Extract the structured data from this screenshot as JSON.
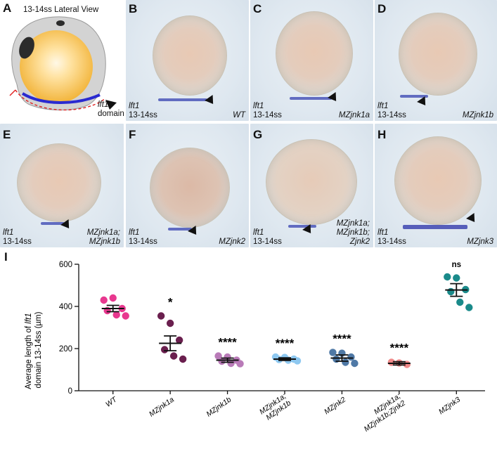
{
  "panels": {
    "A": {
      "letter": "A",
      "view_title": "13-14ss Lateral View",
      "gene": "lft1",
      "domain_label": "domain"
    },
    "B": {
      "letter": "B",
      "gene": "lft1",
      "stage": "13-14ss",
      "genotype": "WT"
    },
    "C": {
      "letter": "C",
      "gene": "lft1",
      "stage": "13-14ss",
      "genotype": "MZjnk1a"
    },
    "D": {
      "letter": "D",
      "gene": "lft1",
      "stage": "13-14ss",
      "genotype": "MZjnk1b"
    },
    "E": {
      "letter": "E",
      "gene": "lft1",
      "stage": "13-14ss",
      "genotype_l1": "MZjnk1a;",
      "genotype_l2": "MZjnk1b"
    },
    "F": {
      "letter": "F",
      "gene": "lft1",
      "stage": "13-14ss",
      "genotype": "MZjnk2"
    },
    "G": {
      "letter": "G",
      "gene": "lft1",
      "stage": "13-14ss",
      "genotype_l1": "MZjnk1a;",
      "genotype_l2": "MZjnk1b;",
      "genotype_l3": "Zjnk2"
    },
    "H": {
      "letter": "H",
      "gene": "lft1",
      "stage": "13-14ss",
      "genotype": "MZjnk3"
    },
    "I": {
      "letter": "I"
    }
  },
  "chart_data": {
    "type": "scatter",
    "ylabel_line1_a": "Average length of ",
    "ylabel_line1_gene": "lft1",
    "ylabel_line2": "domain 13-14ss (µm)",
    "ylim": [
      0,
      600
    ],
    "yticks": [
      0,
      200,
      400,
      600
    ],
    "ytick_labels": [
      "0",
      "200",
      "400",
      "600"
    ],
    "categories": [
      "WT",
      "MZjnk1a",
      "MZjnk1b",
      "MZjnk1a;\nMZjnk1b",
      "MZjnk2",
      "MZjnk1a;\nMZjnk1b;Zjnk2",
      "MZjnk3"
    ],
    "significance": [
      "",
      "*",
      "****",
      "****",
      "****",
      "****",
      "ns"
    ],
    "colors": [
      "#e8388f",
      "#6a1f4e",
      "#b97bb8",
      "#8ec8f0",
      "#4f79a6",
      "#f08a8a",
      "#1a8a8a"
    ],
    "means": [
      390,
      225,
      145,
      150,
      155,
      130,
      478
    ],
    "sems": [
      15,
      35,
      10,
      6,
      15,
      8,
      30
    ],
    "points": [
      [
        430,
        440,
        390,
        380,
        360,
        355
      ],
      [
        355,
        320,
        240,
        195,
        165,
        150
      ],
      [
        165,
        160,
        145,
        140,
        130,
        128
      ],
      [
        160,
        158,
        150,
        148,
        145,
        142
      ],
      [
        182,
        178,
        160,
        150,
        135,
        130
      ],
      [
        135,
        132,
        125
      ],
      [
        540,
        535,
        480,
        470,
        420,
        395
      ]
    ]
  }
}
